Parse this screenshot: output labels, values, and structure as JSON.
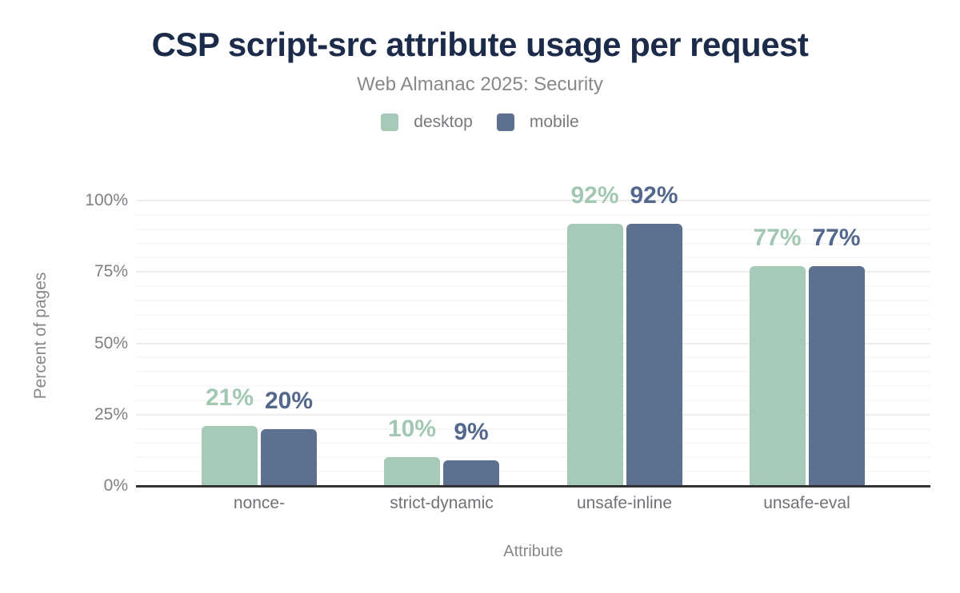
{
  "chart_data": {
    "type": "bar",
    "title": "CSP script-src attribute usage per request",
    "subtitle": "Web Almanac 2025: Security",
    "categories": [
      "nonce-",
      "strict-dynamic",
      "unsafe-inline",
      "unsafe-eval"
    ],
    "series": [
      {
        "name": "desktop",
        "color": "#a6cab7",
        "label_color": "#a2c8b2",
        "values": [
          21,
          10,
          92,
          77
        ]
      },
      {
        "name": "mobile",
        "color": "#5d7090",
        "label_color": "#54678c",
        "values": [
          20,
          9,
          92,
          77
        ]
      }
    ],
    "value_suffix": "%",
    "xlabel": "Attribute",
    "ylabel": "Percent of pages",
    "ylim": [
      0,
      100
    ],
    "yticks": [
      0,
      25,
      50,
      75,
      100
    ],
    "ytick_suffix": "%",
    "minor_grid_step": 5,
    "major_grid_step": 25,
    "grid": true,
    "legend_position": "top",
    "colors": {
      "title": "#1c2b4a",
      "subtitle_text": "#86888b",
      "axis_line": "#333333",
      "tick_text": "#7c7f84",
      "desktop": "#a6cab7",
      "mobile": "#5d7090"
    }
  }
}
